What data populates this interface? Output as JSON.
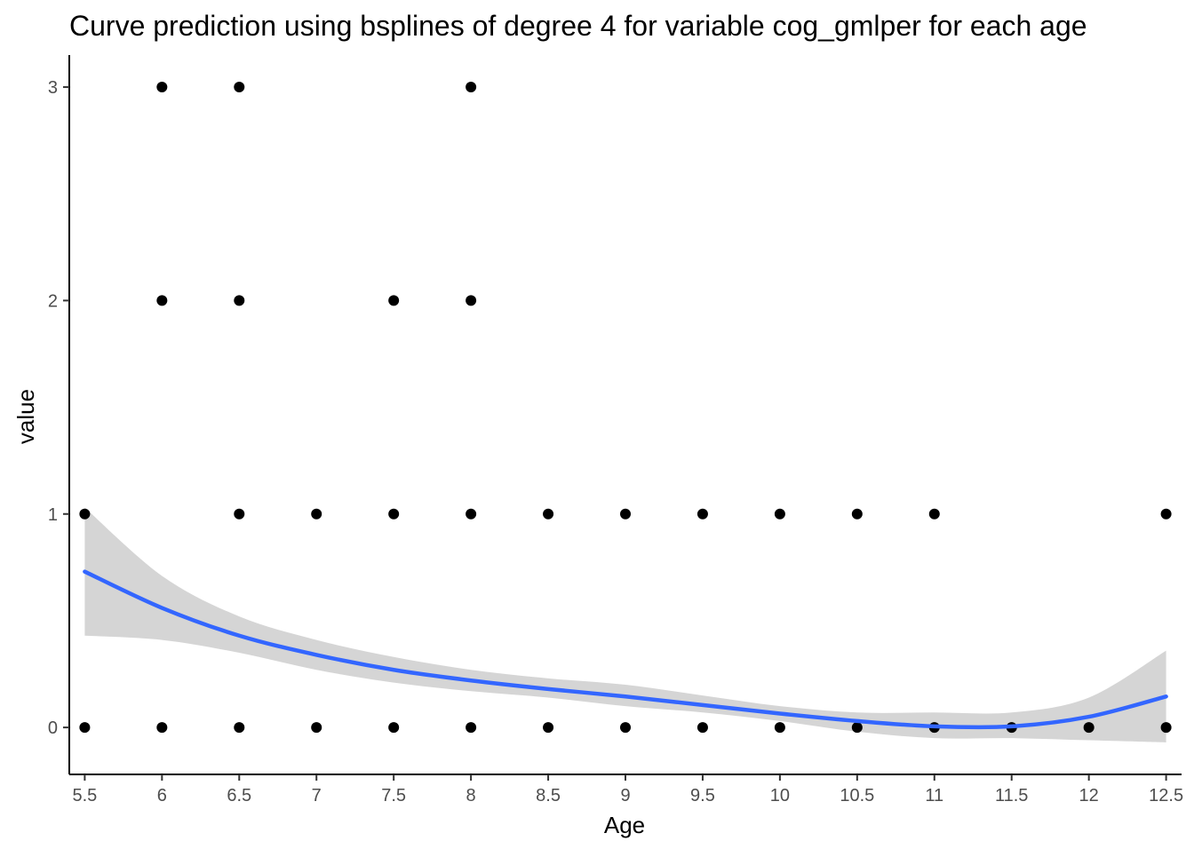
{
  "chart_data": {
    "type": "scatter",
    "title": "Curve prediction using bsplines of degree 4  for variable cog_gmlper for each age",
    "xlabel": "Age",
    "ylabel": "value",
    "xlim": [
      5.4,
      12.6
    ],
    "ylim": [
      -0.22,
      3.15
    ],
    "x_ticks": [
      5.5,
      6,
      6.5,
      7,
      7.5,
      8,
      8.5,
      9,
      9.5,
      10,
      10.5,
      11,
      11.5,
      12,
      12.5
    ],
    "x_tick_labels": [
      "5.5",
      "6",
      "6.5",
      "7",
      "7.5",
      "8",
      "8.5",
      "9",
      "9.5",
      "10",
      "10.5",
      "11",
      "11.5",
      "12",
      "12.5"
    ],
    "y_ticks": [
      0,
      1,
      2,
      3
    ],
    "y_tick_labels": [
      "0",
      "1",
      "2",
      "3"
    ],
    "grid": false,
    "points": [
      [
        6,
        3
      ],
      [
        6.5,
        3
      ],
      [
        8,
        3
      ],
      [
        6,
        2
      ],
      [
        6.5,
        2
      ],
      [
        7.5,
        2
      ],
      [
        8,
        2
      ],
      [
        5.5,
        1
      ],
      [
        6.5,
        1
      ],
      [
        7,
        1
      ],
      [
        7.5,
        1
      ],
      [
        8,
        1
      ],
      [
        8.5,
        1
      ],
      [
        9,
        1
      ],
      [
        9.5,
        1
      ],
      [
        10,
        1
      ],
      [
        10.5,
        1
      ],
      [
        11,
        1
      ],
      [
        12.5,
        1
      ],
      [
        5.5,
        0
      ],
      [
        6,
        0
      ],
      [
        6.5,
        0
      ],
      [
        7,
        0
      ],
      [
        7.5,
        0
      ],
      [
        8,
        0
      ],
      [
        8.5,
        0
      ],
      [
        9,
        0
      ],
      [
        9.5,
        0
      ],
      [
        10,
        0
      ],
      [
        10.5,
        0
      ],
      [
        11,
        0
      ],
      [
        11.5,
        0
      ],
      [
        12,
        0
      ],
      [
        12.5,
        0
      ]
    ],
    "fit": {
      "x": [
        5.5,
        6,
        6.5,
        7,
        7.5,
        8,
        8.5,
        9,
        9.5,
        10,
        10.5,
        11,
        11.5,
        12,
        12.5
      ],
      "y": [
        0.73,
        0.56,
        0.43,
        0.34,
        0.27,
        0.22,
        0.18,
        0.145,
        0.105,
        0.065,
        0.03,
        0.005,
        0.005,
        0.05,
        0.145
      ],
      "lower": [
        0.43,
        0.41,
        0.35,
        0.27,
        0.21,
        0.17,
        0.14,
        0.1,
        0.07,
        0.03,
        -0.02,
        -0.05,
        -0.05,
        -0.06,
        -0.07
      ],
      "upper": [
        1.03,
        0.71,
        0.52,
        0.41,
        0.33,
        0.27,
        0.23,
        0.2,
        0.15,
        0.1,
        0.07,
        0.07,
        0.07,
        0.14,
        0.36
      ]
    },
    "colors": {
      "points": "#000000",
      "fit_line": "#3366ff",
      "ribbon": "#d3d3d3",
      "axis": "#000000",
      "tick_text": "#4d4d4d"
    }
  }
}
